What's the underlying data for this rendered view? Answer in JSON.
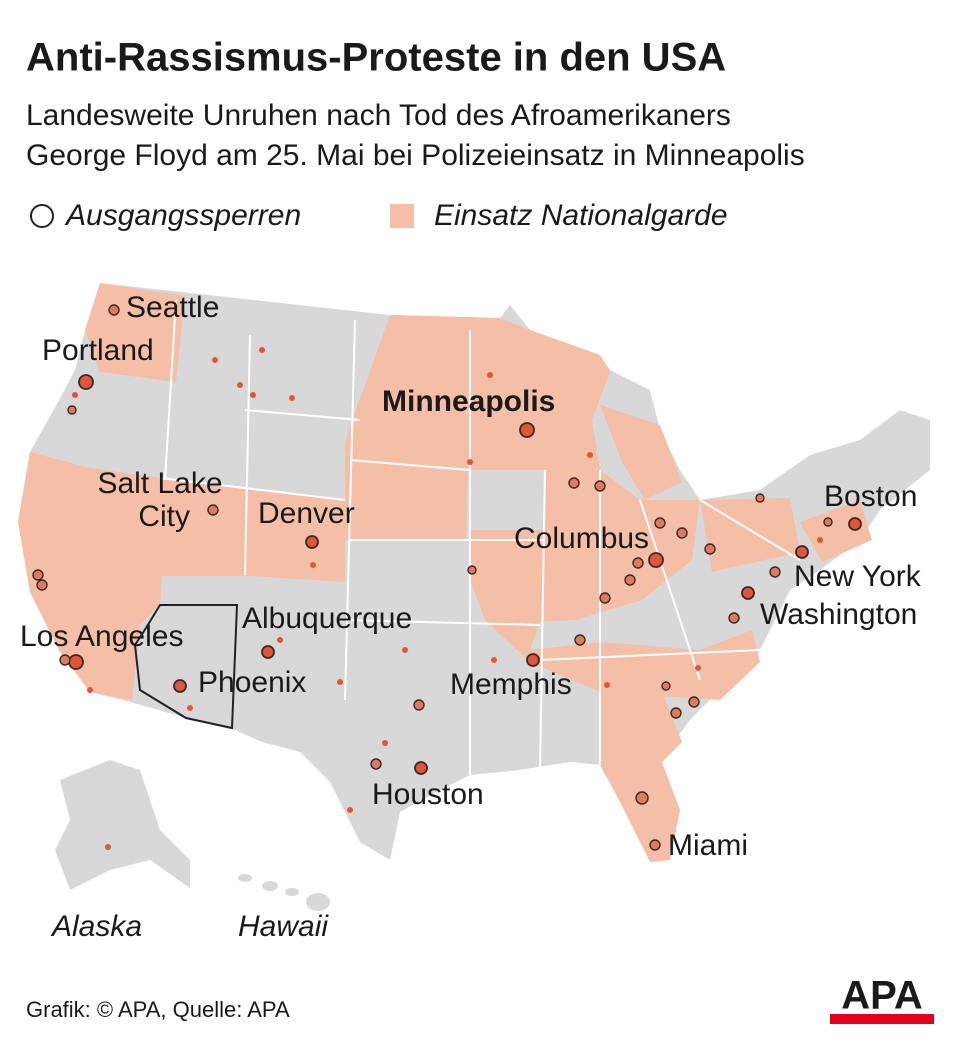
{
  "header": {
    "title": "Anti-Rassismus-Proteste in den USA",
    "subtitle": [
      "Landesweite Unruhen nach Tod des Afroamerikaners",
      "George Floyd am 25. Mai bei Polizeieinsatz in Minneapolis"
    ]
  },
  "legend": [
    "Ausgangssperren",
    "Einsatz Nationalgarde"
  ],
  "map": {
    "cities": [
      "Seattle",
      "Portland",
      "Minneapolis",
      "Salt Lake",
      "City",
      "Denver",
      "Columbus",
      "Boston",
      "New York",
      "Washington",
      "Albuquerque",
      "Los Angeles",
      "Phoenix",
      "Memphis",
      "Houston",
      "Miami"
    ],
    "insets": [
      "Alaska",
      "Hawaii"
    ]
  },
  "footer": {
    "source": "Grafik: © APA, Quelle: APA",
    "logo": "APA"
  }
}
